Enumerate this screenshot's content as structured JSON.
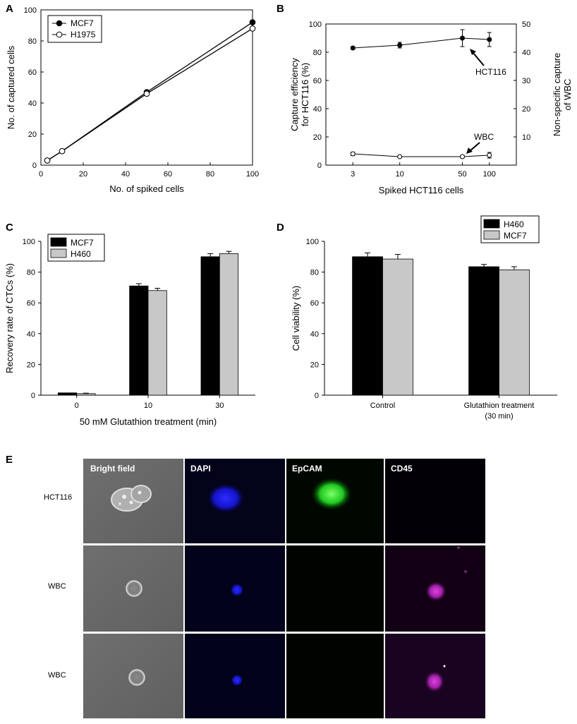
{
  "chart_data": [
    {
      "panel": "A",
      "type": "line",
      "xlabel": "No. of spiked cells",
      "ylabel": "No. of captured cells",
      "xlim": [
        0,
        100
      ],
      "ylim": [
        0,
        100
      ],
      "xticks": [
        "0",
        "20",
        "40",
        "60",
        "80",
        "100"
      ],
      "yticks": [
        "0",
        "20",
        "40",
        "60",
        "80",
        "100"
      ],
      "legend_position": "top-left",
      "series": [
        {
          "name": "MCF7",
          "marker": "filled-circle",
          "x": [
            3,
            10,
            50,
            100
          ],
          "y": [
            3,
            9,
            47,
            92
          ],
          "err": [
            0.5,
            0.5,
            1,
            1.5
          ]
        },
        {
          "name": "H1975",
          "marker": "open-circle",
          "x": [
            3,
            10,
            50,
            100
          ],
          "y": [
            3,
            9,
            46,
            88
          ],
          "err": [
            0.5,
            0.5,
            1,
            5
          ]
        }
      ]
    },
    {
      "panel": "B",
      "type": "line",
      "xlabel": "Spiked HCT116 cells",
      "ylabel": "Capture efficiency for HCT116 (%)",
      "ylabel_lines": [
        "Capture efficiency",
        "for HCT116 (%)"
      ],
      "y2label": "Non-specific capture of WBC",
      "y2label_lines": [
        "Non-specific capture",
        "of WBC"
      ],
      "x_scale": "log",
      "xticks": [
        "3",
        "10",
        "50",
        "100"
      ],
      "ylim": [
        0,
        100
      ],
      "yticks": [
        "0",
        "20",
        "40",
        "60",
        "80",
        "100"
      ],
      "y2lim": [
        0,
        50
      ],
      "y2ticks": [
        "10",
        "20",
        "30",
        "40",
        "50"
      ],
      "series": [
        {
          "name": "HCT116",
          "axis": "left",
          "marker": "filled-circle",
          "x": [
            3,
            10,
            50,
            100
          ],
          "y": [
            83,
            85,
            90,
            89
          ],
          "err": [
            1,
            2,
            6,
            5
          ]
        },
        {
          "name": "WBC",
          "axis": "right",
          "marker": "open-circle",
          "x": [
            3,
            10,
            50,
            100
          ],
          "y": [
            4,
            3,
            3,
            3.5
          ],
          "err": [
            0.6,
            0.3,
            0.5,
            1
          ]
        }
      ],
      "annotations": [
        "HCT116",
        "WBC"
      ]
    },
    {
      "panel": "C",
      "type": "bar",
      "xlabel": "50 mM Glutathion treatment (min)",
      "ylabel": "Recovery rate of CTCs (%)",
      "categories": [
        "0",
        "10",
        "30"
      ],
      "ylim": [
        0,
        100
      ],
      "yticks": [
        "0",
        "20",
        "40",
        "60",
        "80",
        "100"
      ],
      "legend_position": "top-left",
      "series": [
        {
          "name": "MCF7",
          "color": "#000000",
          "values": [
            1.5,
            71,
            90
          ],
          "err": [
            0,
            1.5,
            2
          ]
        },
        {
          "name": "H460",
          "color": "#c8c8c8",
          "values": [
            1,
            68,
            92
          ],
          "err": [
            0.3,
            1.5,
            1.5
          ]
        }
      ]
    },
    {
      "panel": "D",
      "type": "bar",
      "ylabel": "Cell viability (%)",
      "categories": [
        [
          "Control"
        ],
        [
          "Glutathion treatment",
          "(30 min)"
        ]
      ],
      "ylim": [
        0,
        100
      ],
      "yticks": [
        "0",
        "20",
        "40",
        "60",
        "80",
        "100"
      ],
      "legend_position": "top-right",
      "series": [
        {
          "name": "H460",
          "color": "#000000",
          "values": [
            90,
            83.5
          ],
          "err": [
            2.5,
            1.5
          ]
        },
        {
          "name": "MCF7",
          "color": "#c8c8c8",
          "values": [
            88.5,
            81.5
          ],
          "err": [
            3,
            2
          ]
        }
      ]
    }
  ],
  "panel_letters": {
    "a": "A",
    "b": "B",
    "c": "C",
    "d": "D",
    "e": "E"
  },
  "micrographs": {
    "columns": [
      "Bright field",
      "DAPI",
      "EpCAM",
      "CD45"
    ],
    "rows": [
      {
        "label": "HCT116"
      },
      {
        "label": "WBC"
      },
      {
        "label": "WBC"
      }
    ]
  }
}
